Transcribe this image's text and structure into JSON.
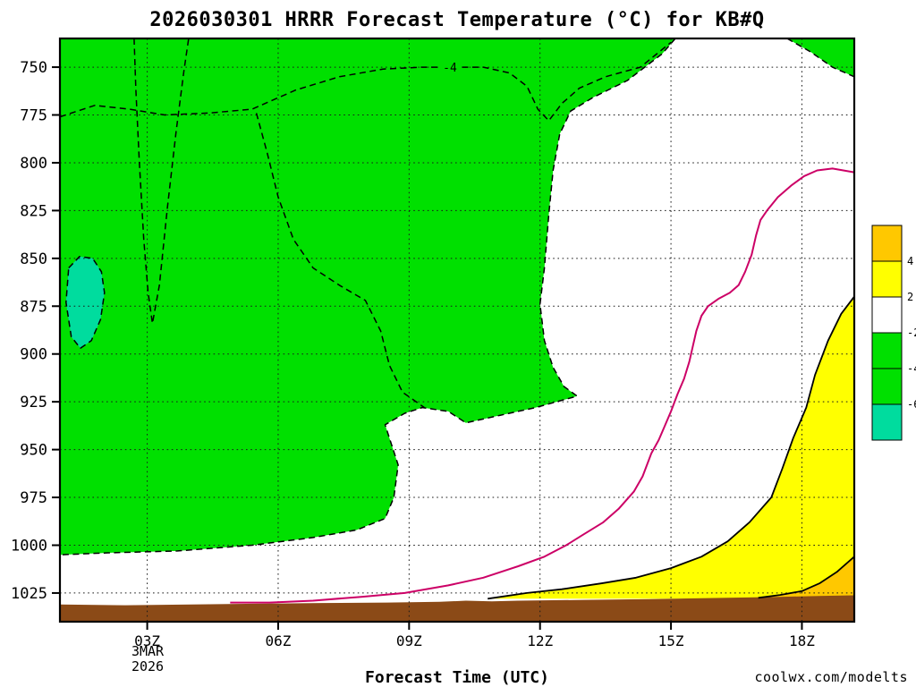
{
  "page": {
    "title": "2026030301 HRRR Forecast Temperature (°C) for KB#Q",
    "xlabel": "Forecast Time (UTC)",
    "x_date_line1": "3MAR",
    "x_date_line2": "2026",
    "watermark": "coolwx.com/modelts"
  },
  "colors": {
    "black": "#000000",
    "white": "#ffffff",
    "green": "#00e000",
    "teal": "#00dc9e",
    "yellow": "#ffff00",
    "orange": "#ffc800",
    "brown": "#8b4a17",
    "magenta": "#cc0066",
    "watermark": "#f08080"
  },
  "chart_data": {
    "type": "filled-contour",
    "x_axis": {
      "range_hours": [
        1,
        19.2
      ],
      "ticks": [
        {
          "hour": 3,
          "label": "03Z"
        },
        {
          "hour": 6,
          "label": "06Z"
        },
        {
          "hour": 9,
          "label": "09Z"
        },
        {
          "hour": 12,
          "label": "12Z"
        },
        {
          "hour": 15,
          "label": "15Z"
        },
        {
          "hour": 18,
          "label": "18Z"
        }
      ]
    },
    "y_axis": {
      "range_hpa": [
        735,
        1040
      ],
      "inverted": true,
      "ticks": [
        750,
        775,
        800,
        825,
        850,
        875,
        900,
        925,
        950,
        975,
        1000,
        1025
      ]
    },
    "colorbar": {
      "boundary_labels": [
        "4",
        "2",
        "-2",
        "-4",
        "-6"
      ],
      "cell_colors": [
        "orange",
        "yellow",
        "white",
        "green",
        "green",
        "teal"
      ]
    },
    "contour_label": {
      "text": "-4",
      "hour": 9.95,
      "pressure": 750
    },
    "regions": [
      {
        "name": "region-temp-minus4-to-minus2-main",
        "color": "green",
        "points": [
          [
            1,
            735
          ],
          [
            15.1,
            735
          ],
          [
            14.8,
            743
          ],
          [
            14,
            757
          ],
          [
            13.2,
            766
          ],
          [
            12.7,
            773
          ],
          [
            12.45,
            785
          ],
          [
            12.3,
            804
          ],
          [
            12.2,
            827
          ],
          [
            12.1,
            855
          ],
          [
            12,
            874
          ],
          [
            12.1,
            893
          ],
          [
            12.3,
            907
          ],
          [
            12.55,
            917
          ],
          [
            12.85,
            922
          ],
          [
            11.9,
            928
          ],
          [
            11.1,
            932
          ],
          [
            10.3,
            936
          ],
          [
            9.9,
            930
          ],
          [
            9.3,
            928
          ],
          [
            8.9,
            931
          ],
          [
            8.45,
            937
          ],
          [
            8.75,
            958
          ],
          [
            8.65,
            975
          ],
          [
            8.45,
            986
          ],
          [
            7.8,
            992
          ],
          [
            6.8,
            996
          ],
          [
            5.4,
            1000
          ],
          [
            3.7,
            1003
          ],
          [
            2.1,
            1004
          ],
          [
            1,
            1005
          ]
        ]
      },
      {
        "name": "region-temp-below-minus2-topright",
        "color": "green",
        "points": [
          [
            17.66,
            735
          ],
          [
            19.2,
            735
          ],
          [
            19.2,
            755
          ],
          [
            18.7,
            750
          ],
          [
            18.2,
            742
          ]
        ]
      },
      {
        "name": "region-temp-below-minus6-pocket",
        "color": "teal",
        "points": [
          [
            1.2,
            855
          ],
          [
            1.45,
            849
          ],
          [
            1.75,
            850
          ],
          [
            1.95,
            857
          ],
          [
            2.02,
            868
          ],
          [
            1.93,
            882
          ],
          [
            1.72,
            893
          ],
          [
            1.47,
            897
          ],
          [
            1.26,
            891
          ],
          [
            1.14,
            873
          ]
        ]
      },
      {
        "name": "region-temp-above-plus2",
        "color": "yellow",
        "points": [
          [
            19.2,
            870
          ],
          [
            18.9,
            879
          ],
          [
            18.6,
            893
          ],
          [
            18.3,
            911
          ],
          [
            18.1,
            928
          ],
          [
            17.8,
            944
          ],
          [
            17.55,
            960
          ],
          [
            17.3,
            975
          ],
          [
            16.8,
            988
          ],
          [
            16.3,
            998
          ],
          [
            15.7,
            1006
          ],
          [
            15,
            1012
          ],
          [
            14.2,
            1017
          ],
          [
            13.4,
            1020
          ],
          [
            12.5,
            1023
          ],
          [
            11.7,
            1025
          ],
          [
            11.1,
            1027
          ],
          [
            10.8,
            1028
          ],
          [
            19.2,
            1028
          ]
        ]
      },
      {
        "name": "region-temp-above-plus4",
        "color": "orange",
        "points": [
          [
            19.2,
            1006
          ],
          [
            18.8,
            1014
          ],
          [
            18.4,
            1020
          ],
          [
            18,
            1024
          ],
          [
            17.5,
            1026
          ],
          [
            17,
            1027.5
          ],
          [
            19.2,
            1027.5
          ]
        ]
      },
      {
        "name": "region-below-ground",
        "color": "brown",
        "points": [
          [
            1,
            1031
          ],
          [
            2.5,
            1031.4
          ],
          [
            4,
            1031
          ],
          [
            5.5,
            1030.6
          ],
          [
            7,
            1030.2
          ],
          [
            8.5,
            1030
          ],
          [
            9.7,
            1029.6
          ],
          [
            10.3,
            1029
          ],
          [
            10.9,
            1029.4
          ],
          [
            11.5,
            1029
          ],
          [
            13,
            1028.6
          ],
          [
            14.5,
            1028.2
          ],
          [
            16,
            1027.6
          ],
          [
            17.5,
            1027
          ],
          [
            18.5,
            1026.5
          ],
          [
            19.2,
            1026.2
          ],
          [
            19.2,
            1040
          ],
          [
            1,
            1040
          ]
        ]
      }
    ],
    "contours": [
      {
        "name": "isotherm-minus4-upper",
        "value": -4,
        "color": "black",
        "style": "dashed",
        "closed": false,
        "points": [
          [
            1,
            776
          ],
          [
            1.8,
            770
          ],
          [
            2.6,
            772
          ],
          [
            3.4,
            775
          ],
          [
            4.4,
            774
          ],
          [
            5.4,
            772
          ],
          [
            6.4,
            762
          ],
          [
            7.4,
            755
          ],
          [
            8.4,
            751
          ],
          [
            9.3,
            750
          ],
          [
            10.7,
            750
          ],
          [
            11.3,
            753
          ],
          [
            11.7,
            760
          ],
          [
            11.95,
            772
          ],
          [
            12.2,
            778
          ],
          [
            12.5,
            769
          ],
          [
            12.9,
            761
          ],
          [
            13.5,
            755
          ],
          [
            14.3,
            750
          ],
          [
            15,
            737
          ]
        ]
      },
      {
        "name": "isotherm-minus4-loop",
        "value": -4,
        "color": "black",
        "style": "dashed",
        "closed": false,
        "points": [
          [
            2.7,
            735
          ],
          [
            2.74,
            762
          ],
          [
            2.82,
            800
          ],
          [
            2.92,
            840
          ],
          [
            3.02,
            868
          ],
          [
            3.12,
            884
          ],
          [
            3.28,
            864
          ],
          [
            3.46,
            824
          ],
          [
            3.66,
            784
          ],
          [
            3.84,
            752
          ],
          [
            3.95,
            735
          ]
        ]
      },
      {
        "name": "isotherm-minus4-inner",
        "value": -4,
        "color": "black",
        "style": "dashed",
        "closed": false,
        "points": [
          [
            5.5,
            774
          ],
          [
            5.75,
            795
          ],
          [
            6,
            818
          ],
          [
            6.35,
            840
          ],
          [
            6.8,
            855
          ],
          [
            7.4,
            864
          ],
          [
            8,
            872
          ],
          [
            8.35,
            888
          ],
          [
            8.55,
            906
          ],
          [
            8.85,
            920
          ],
          [
            9.35,
            928
          ]
        ]
      },
      {
        "name": "isotherm-minus2-main",
        "value": -2,
        "color": "black",
        "style": "dashed",
        "closed": false,
        "points": [
          [
            15.1,
            735
          ],
          [
            14.8,
            743
          ],
          [
            14,
            757
          ],
          [
            13.2,
            766
          ],
          [
            12.7,
            773
          ],
          [
            12.45,
            785
          ],
          [
            12.3,
            804
          ],
          [
            12.2,
            827
          ],
          [
            12.1,
            855
          ],
          [
            12,
            874
          ],
          [
            12.1,
            893
          ],
          [
            12.3,
            907
          ],
          [
            12.55,
            917
          ],
          [
            12.85,
            922
          ],
          [
            11.9,
            928
          ],
          [
            11.1,
            932
          ],
          [
            10.3,
            936
          ],
          [
            9.9,
            930
          ],
          [
            9.3,
            928
          ],
          [
            8.9,
            931
          ],
          [
            8.45,
            937
          ],
          [
            8.75,
            958
          ],
          [
            8.65,
            975
          ],
          [
            8.45,
            986
          ],
          [
            7.8,
            992
          ],
          [
            6.8,
            996
          ],
          [
            5.4,
            1000
          ],
          [
            3.7,
            1003
          ],
          [
            2.1,
            1004
          ],
          [
            1,
            1005
          ]
        ]
      },
      {
        "name": "isotherm-minus2-topright",
        "value": -2,
        "color": "black",
        "style": "dashed",
        "closed": false,
        "points": [
          [
            17.66,
            735
          ],
          [
            18.2,
            742
          ],
          [
            18.7,
            750
          ],
          [
            19.2,
            755
          ]
        ]
      },
      {
        "name": "isotherm-minus6-pocket",
        "value": -6,
        "color": "black",
        "style": "dashed",
        "closed": true,
        "points": [
          [
            1.2,
            855
          ],
          [
            1.45,
            849
          ],
          [
            1.75,
            850
          ],
          [
            1.95,
            857
          ],
          [
            2.02,
            868
          ],
          [
            1.93,
            882
          ],
          [
            1.72,
            893
          ],
          [
            1.47,
            897
          ],
          [
            1.26,
            891
          ],
          [
            1.14,
            873
          ]
        ]
      },
      {
        "name": "isotherm-zero",
        "value": 0,
        "color": "magenta",
        "style": "solid",
        "closed": false,
        "points": [
          [
            4.9,
            1030
          ],
          [
            5.8,
            1030
          ],
          [
            6.8,
            1029
          ],
          [
            7.9,
            1027
          ],
          [
            8.9,
            1025
          ],
          [
            9.9,
            1021
          ],
          [
            10.7,
            1017
          ],
          [
            11.5,
            1011
          ],
          [
            12.1,
            1006
          ],
          [
            12.6,
            1000
          ],
          [
            12.95,
            995
          ],
          [
            13.45,
            988
          ],
          [
            13.8,
            981
          ],
          [
            14.15,
            972
          ],
          [
            14.35,
            964
          ],
          [
            14.55,
            952
          ],
          [
            14.72,
            945
          ],
          [
            14.85,
            938
          ],
          [
            15,
            930
          ],
          [
            15.15,
            921
          ],
          [
            15.3,
            913
          ],
          [
            15.42,
            904
          ],
          [
            15.5,
            896
          ],
          [
            15.58,
            888
          ],
          [
            15.7,
            880
          ],
          [
            15.85,
            875
          ],
          [
            16.1,
            871
          ],
          [
            16.35,
            868
          ],
          [
            16.55,
            864
          ],
          [
            16.7,
            857
          ],
          [
            16.85,
            848
          ],
          [
            16.95,
            838
          ],
          [
            17.05,
            830
          ],
          [
            17.2,
            825
          ],
          [
            17.45,
            818
          ],
          [
            17.75,
            812
          ],
          [
            18.05,
            807
          ],
          [
            18.35,
            804
          ],
          [
            18.7,
            803
          ],
          [
            19.2,
            805
          ]
        ]
      },
      {
        "name": "isotherm-plus2",
        "value": 2,
        "color": "black",
        "style": "solid",
        "closed": false,
        "points": [
          [
            19.2,
            870
          ],
          [
            18.9,
            879
          ],
          [
            18.6,
            893
          ],
          [
            18.3,
            911
          ],
          [
            18.1,
            928
          ],
          [
            17.8,
            944
          ],
          [
            17.55,
            960
          ],
          [
            17.3,
            975
          ],
          [
            16.8,
            988
          ],
          [
            16.3,
            998
          ],
          [
            15.7,
            1006
          ],
          [
            15,
            1012
          ],
          [
            14.2,
            1017
          ],
          [
            13.4,
            1020
          ],
          [
            12.5,
            1023
          ],
          [
            11.7,
            1025
          ],
          [
            11.1,
            1027
          ],
          [
            10.8,
            1028
          ]
        ]
      },
      {
        "name": "isotherm-plus4",
        "value": 4,
        "color": "black",
        "style": "solid",
        "closed": false,
        "points": [
          [
            19.2,
            1006
          ],
          [
            18.8,
            1014
          ],
          [
            18.4,
            1020
          ],
          [
            18,
            1024
          ],
          [
            17.5,
            1026
          ],
          [
            17,
            1027.5
          ]
        ]
      }
    ]
  }
}
